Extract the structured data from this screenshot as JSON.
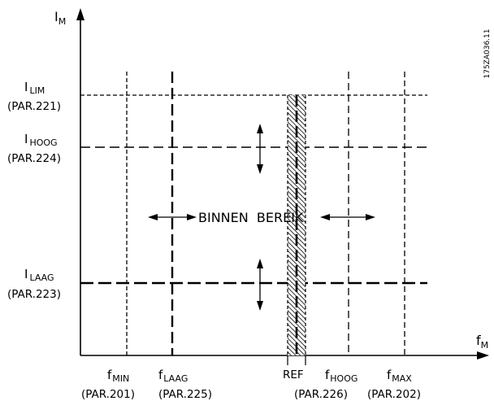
{
  "drawing_code": "175ZA036.11",
  "axes": {
    "y_symbol": "I",
    "y_subscript": "M",
    "x_symbol": "f",
    "x_subscript": "M"
  },
  "current_levels": {
    "lim": {
      "symbol": "I",
      "subscript": "LIM",
      "param": "(PAR.221)"
    },
    "hoog": {
      "symbol": "I",
      "subscript": "HOOG",
      "param": "(PAR.224)"
    },
    "laag": {
      "symbol": "I",
      "subscript": "LAAG",
      "param": "(PAR.223)"
    }
  },
  "frequency_levels": {
    "min": {
      "symbol": "f",
      "subscript": "MIN",
      "param": "(PAR.201)"
    },
    "laag": {
      "symbol": "f",
      "subscript": "LAAG",
      "param": "(PAR.225)"
    },
    "ref": {
      "label": "REF"
    },
    "hoog": {
      "symbol": "f",
      "subscript": "HOOG",
      "param": "(PAR.226)"
    },
    "max": {
      "symbol": "f",
      "subscript": "MAX",
      "param": "(PAR.202)"
    }
  },
  "region_label": "BINNEN  BEREIK"
}
